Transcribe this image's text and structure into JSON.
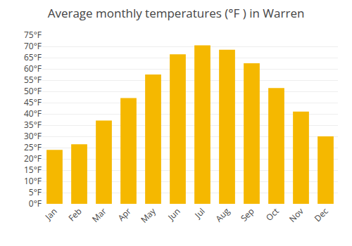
{
  "chart_data": {
    "type": "bar",
    "title": "Average monthly temperatures (°F ) in Warren",
    "categories": [
      "Jan",
      "Feb",
      "Mar",
      "Apr",
      "May",
      "Jun",
      "Jul",
      "Aug",
      "Sep",
      "Oct",
      "Nov",
      "Dec"
    ],
    "values": [
      24,
      26.5,
      37,
      47,
      57.5,
      66.5,
      70.5,
      68.5,
      62.5,
      51.5,
      41,
      30
    ],
    "color": "#F5B800",
    "ylim": [
      0,
      75
    ],
    "yticks": [
      {
        "value": 0,
        "label": "0°F"
      },
      {
        "value": 5,
        "label": "5°F"
      },
      {
        "value": 10,
        "label": "10°F"
      },
      {
        "value": 15,
        "label": "15°F"
      },
      {
        "value": 20,
        "label": "20°F"
      },
      {
        "value": 25,
        "label": "25°F"
      },
      {
        "value": 30,
        "label": "30°F"
      },
      {
        "value": 35,
        "label": "35°F"
      },
      {
        "value": 40,
        "label": "40°F"
      },
      {
        "value": 45,
        "label": "45°F"
      },
      {
        "value": 50,
        "label": "50°F"
      },
      {
        "value": 55,
        "label": "55°F"
      },
      {
        "value": 60,
        "label": "60°F"
      },
      {
        "value": 65,
        "label": "65°F"
      },
      {
        "value": 70,
        "label": "70°F"
      },
      {
        "value": 75,
        "label": "75°F"
      }
    ],
    "grid": true
  }
}
